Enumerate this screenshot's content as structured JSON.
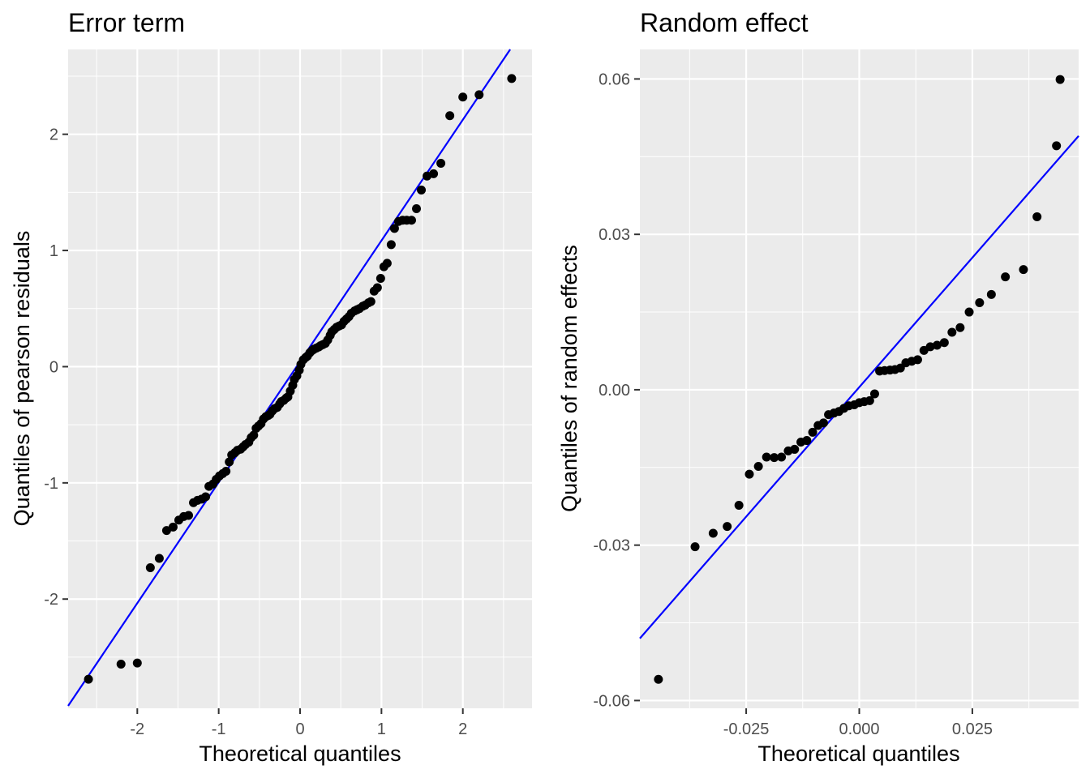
{
  "chart_data": [
    {
      "type": "scatter",
      "title": "Error term",
      "xlabel": "Theoretical quantiles",
      "ylabel": "Quantiles of pearson residuals",
      "xlim": [
        -2.85,
        2.85
      ],
      "ylim": [
        -2.94,
        2.73
      ],
      "x_ticks": [
        -2,
        -1,
        0,
        1,
        2
      ],
      "x_tick_labels": [
        "-2",
        "-1",
        "0",
        "1",
        "2"
      ],
      "y_ticks": [
        -2,
        -1,
        0,
        1,
        2
      ],
      "y_tick_labels": [
        "-2",
        "-1",
        "0",
        "1",
        "2"
      ],
      "grid": true,
      "background": "#ebebeb",
      "point_color": "#000000",
      "reference_line": {
        "color": "#0000ff",
        "intercept": 0.045,
        "slope": 1.04
      },
      "points": [
        [
          -2.6,
          -2.69
        ],
        [
          -2.2,
          -2.56
        ],
        [
          -2.0,
          -2.55
        ],
        [
          -1.84,
          -1.73
        ],
        [
          -1.73,
          -1.65
        ],
        [
          -1.64,
          -1.41
        ],
        [
          -1.56,
          -1.38
        ],
        [
          -1.49,
          -1.32
        ],
        [
          -1.43,
          -1.29
        ],
        [
          -1.37,
          -1.28
        ],
        [
          -1.31,
          -1.17
        ],
        [
          -1.26,
          -1.15
        ],
        [
          -1.21,
          -1.14
        ],
        [
          -1.16,
          -1.12
        ],
        [
          -1.12,
          -1.03
        ],
        [
          -1.07,
          -1.01
        ],
        [
          -1.03,
          -0.97
        ],
        [
          -0.99,
          -0.94
        ],
        [
          -0.95,
          -0.92
        ],
        [
          -0.91,
          -0.9
        ],
        [
          -0.87,
          -0.82
        ],
        [
          -0.84,
          -0.76
        ],
        [
          -0.8,
          -0.74
        ],
        [
          -0.77,
          -0.72
        ],
        [
          -0.73,
          -0.71
        ],
        [
          -0.7,
          -0.69
        ],
        [
          -0.67,
          -0.67
        ],
        [
          -0.63,
          -0.65
        ],
        [
          -0.6,
          -0.61
        ],
        [
          -0.57,
          -0.59
        ],
        [
          -0.54,
          -0.53
        ],
        [
          -0.51,
          -0.51
        ],
        [
          -0.48,
          -0.49
        ],
        [
          -0.45,
          -0.45
        ],
        [
          -0.42,
          -0.43
        ],
        [
          -0.39,
          -0.42
        ],
        [
          -0.37,
          -0.41
        ],
        [
          -0.34,
          -0.38
        ],
        [
          -0.31,
          -0.36
        ],
        [
          -0.28,
          -0.35
        ],
        [
          -0.25,
          -0.32
        ],
        [
          -0.23,
          -0.3
        ],
        [
          -0.2,
          -0.29
        ],
        [
          -0.17,
          -0.27
        ],
        [
          -0.15,
          -0.26
        ],
        [
          -0.12,
          -0.21
        ],
        [
          -0.09,
          -0.16
        ],
        [
          -0.07,
          -0.11
        ],
        [
          -0.04,
          -0.08
        ],
        [
          -0.01,
          -0.03
        ],
        [
          0.01,
          0.02
        ],
        [
          0.04,
          0.06
        ],
        [
          0.07,
          0.08
        ],
        [
          0.09,
          0.09
        ],
        [
          0.12,
          0.12
        ],
        [
          0.15,
          0.14
        ],
        [
          0.17,
          0.15
        ],
        [
          0.2,
          0.16
        ],
        [
          0.23,
          0.17
        ],
        [
          0.25,
          0.18
        ],
        [
          0.28,
          0.19
        ],
        [
          0.31,
          0.2
        ],
        [
          0.34,
          0.23
        ],
        [
          0.37,
          0.27
        ],
        [
          0.39,
          0.3
        ],
        [
          0.42,
          0.32
        ],
        [
          0.45,
          0.34
        ],
        [
          0.48,
          0.35
        ],
        [
          0.51,
          0.36
        ],
        [
          0.54,
          0.39
        ],
        [
          0.57,
          0.41
        ],
        [
          0.6,
          0.43
        ],
        [
          0.63,
          0.46
        ],
        [
          0.67,
          0.48
        ],
        [
          0.7,
          0.49
        ],
        [
          0.73,
          0.5
        ],
        [
          0.77,
          0.52
        ],
        [
          0.8,
          0.53
        ],
        [
          0.84,
          0.55
        ],
        [
          0.87,
          0.56
        ],
        [
          0.91,
          0.65
        ],
        [
          0.95,
          0.68
        ],
        [
          0.99,
          0.76
        ],
        [
          1.03,
          0.86
        ],
        [
          1.07,
          0.89
        ],
        [
          1.12,
          1.05
        ],
        [
          1.16,
          1.19
        ],
        [
          1.21,
          1.25
        ],
        [
          1.26,
          1.26
        ],
        [
          1.31,
          1.26
        ],
        [
          1.37,
          1.26
        ],
        [
          1.43,
          1.36
        ],
        [
          1.49,
          1.52
        ],
        [
          1.56,
          1.64
        ],
        [
          1.64,
          1.66
        ],
        [
          1.73,
          1.75
        ],
        [
          1.84,
          2.16
        ],
        [
          2.0,
          2.32
        ],
        [
          2.2,
          2.34
        ],
        [
          2.6,
          2.48
        ]
      ]
    },
    {
      "type": "scatter",
      "title": "Random effect",
      "xlabel": "Theoretical quantiles",
      "ylabel": "Quantiles of random effects",
      "xlim": [
        -0.0485,
        0.0485
      ],
      "ylim": [
        -0.0615,
        0.0657
      ],
      "x_ticks": [
        -0.025,
        0.0,
        0.025
      ],
      "x_tick_labels": [
        "-0.025",
        "0.000",
        "0.025"
      ],
      "y_ticks": [
        -0.06,
        -0.03,
        0.0,
        0.03,
        0.06
      ],
      "y_tick_labels": [
        "-0.06",
        "-0.03",
        "0.00",
        "0.03",
        "0.06"
      ],
      "grid": true,
      "background": "#ebebeb",
      "point_color": "#000000",
      "reference_line": {
        "color": "#0000ff",
        "intercept": 0.0005,
        "slope": 1.0
      },
      "points": [
        [
          -0.0444,
          -0.0559
        ],
        [
          -0.0363,
          -0.0303
        ],
        [
          -0.0323,
          -0.0277
        ],
        [
          -0.0292,
          -0.0264
        ],
        [
          -0.0266,
          -0.0223
        ],
        [
          -0.0243,
          -0.0163
        ],
        [
          -0.0223,
          -0.0148
        ],
        [
          -0.0205,
          -0.013
        ],
        [
          -0.0188,
          -0.0131
        ],
        [
          -0.0172,
          -0.013
        ],
        [
          -0.0157,
          -0.0118
        ],
        [
          -0.0143,
          -0.0115
        ],
        [
          -0.0129,
          -0.0101
        ],
        [
          -0.0116,
          -0.0098
        ],
        [
          -0.0103,
          -0.0082
        ],
        [
          -0.0091,
          -0.0069
        ],
        [
          -0.0079,
          -0.0064
        ],
        [
          -0.0068,
          -0.0048
        ],
        [
          -0.0056,
          -0.0045
        ],
        [
          -0.0045,
          -0.0042
        ],
        [
          -0.0034,
          -0.0036
        ],
        [
          -0.0023,
          -0.0031
        ],
        [
          -0.0011,
          -0.0029
        ],
        [
          0.0,
          -0.0025
        ],
        [
          0.0011,
          -0.0023
        ],
        [
          0.0023,
          -0.0021
        ],
        [
          0.0034,
          -0.0008
        ],
        [
          0.0045,
          0.0036
        ],
        [
          0.0056,
          0.0037
        ],
        [
          0.0068,
          0.0038
        ],
        [
          0.0079,
          0.0039
        ],
        [
          0.0091,
          0.0042
        ],
        [
          0.0103,
          0.0052
        ],
        [
          0.0116,
          0.0055
        ],
        [
          0.0129,
          0.0058
        ],
        [
          0.0143,
          0.0076
        ],
        [
          0.0157,
          0.0083
        ],
        [
          0.0172,
          0.0086
        ],
        [
          0.0188,
          0.0091
        ],
        [
          0.0205,
          0.0111
        ],
        [
          0.0223,
          0.012
        ],
        [
          0.0243,
          0.015
        ],
        [
          0.0266,
          0.0168
        ],
        [
          0.0292,
          0.0184
        ],
        [
          0.0323,
          0.0218
        ],
        [
          0.0363,
          0.0232
        ],
        [
          0.0393,
          0.0334
        ],
        [
          0.0436,
          0.0471
        ],
        [
          0.0444,
          0.0599
        ]
      ]
    }
  ]
}
